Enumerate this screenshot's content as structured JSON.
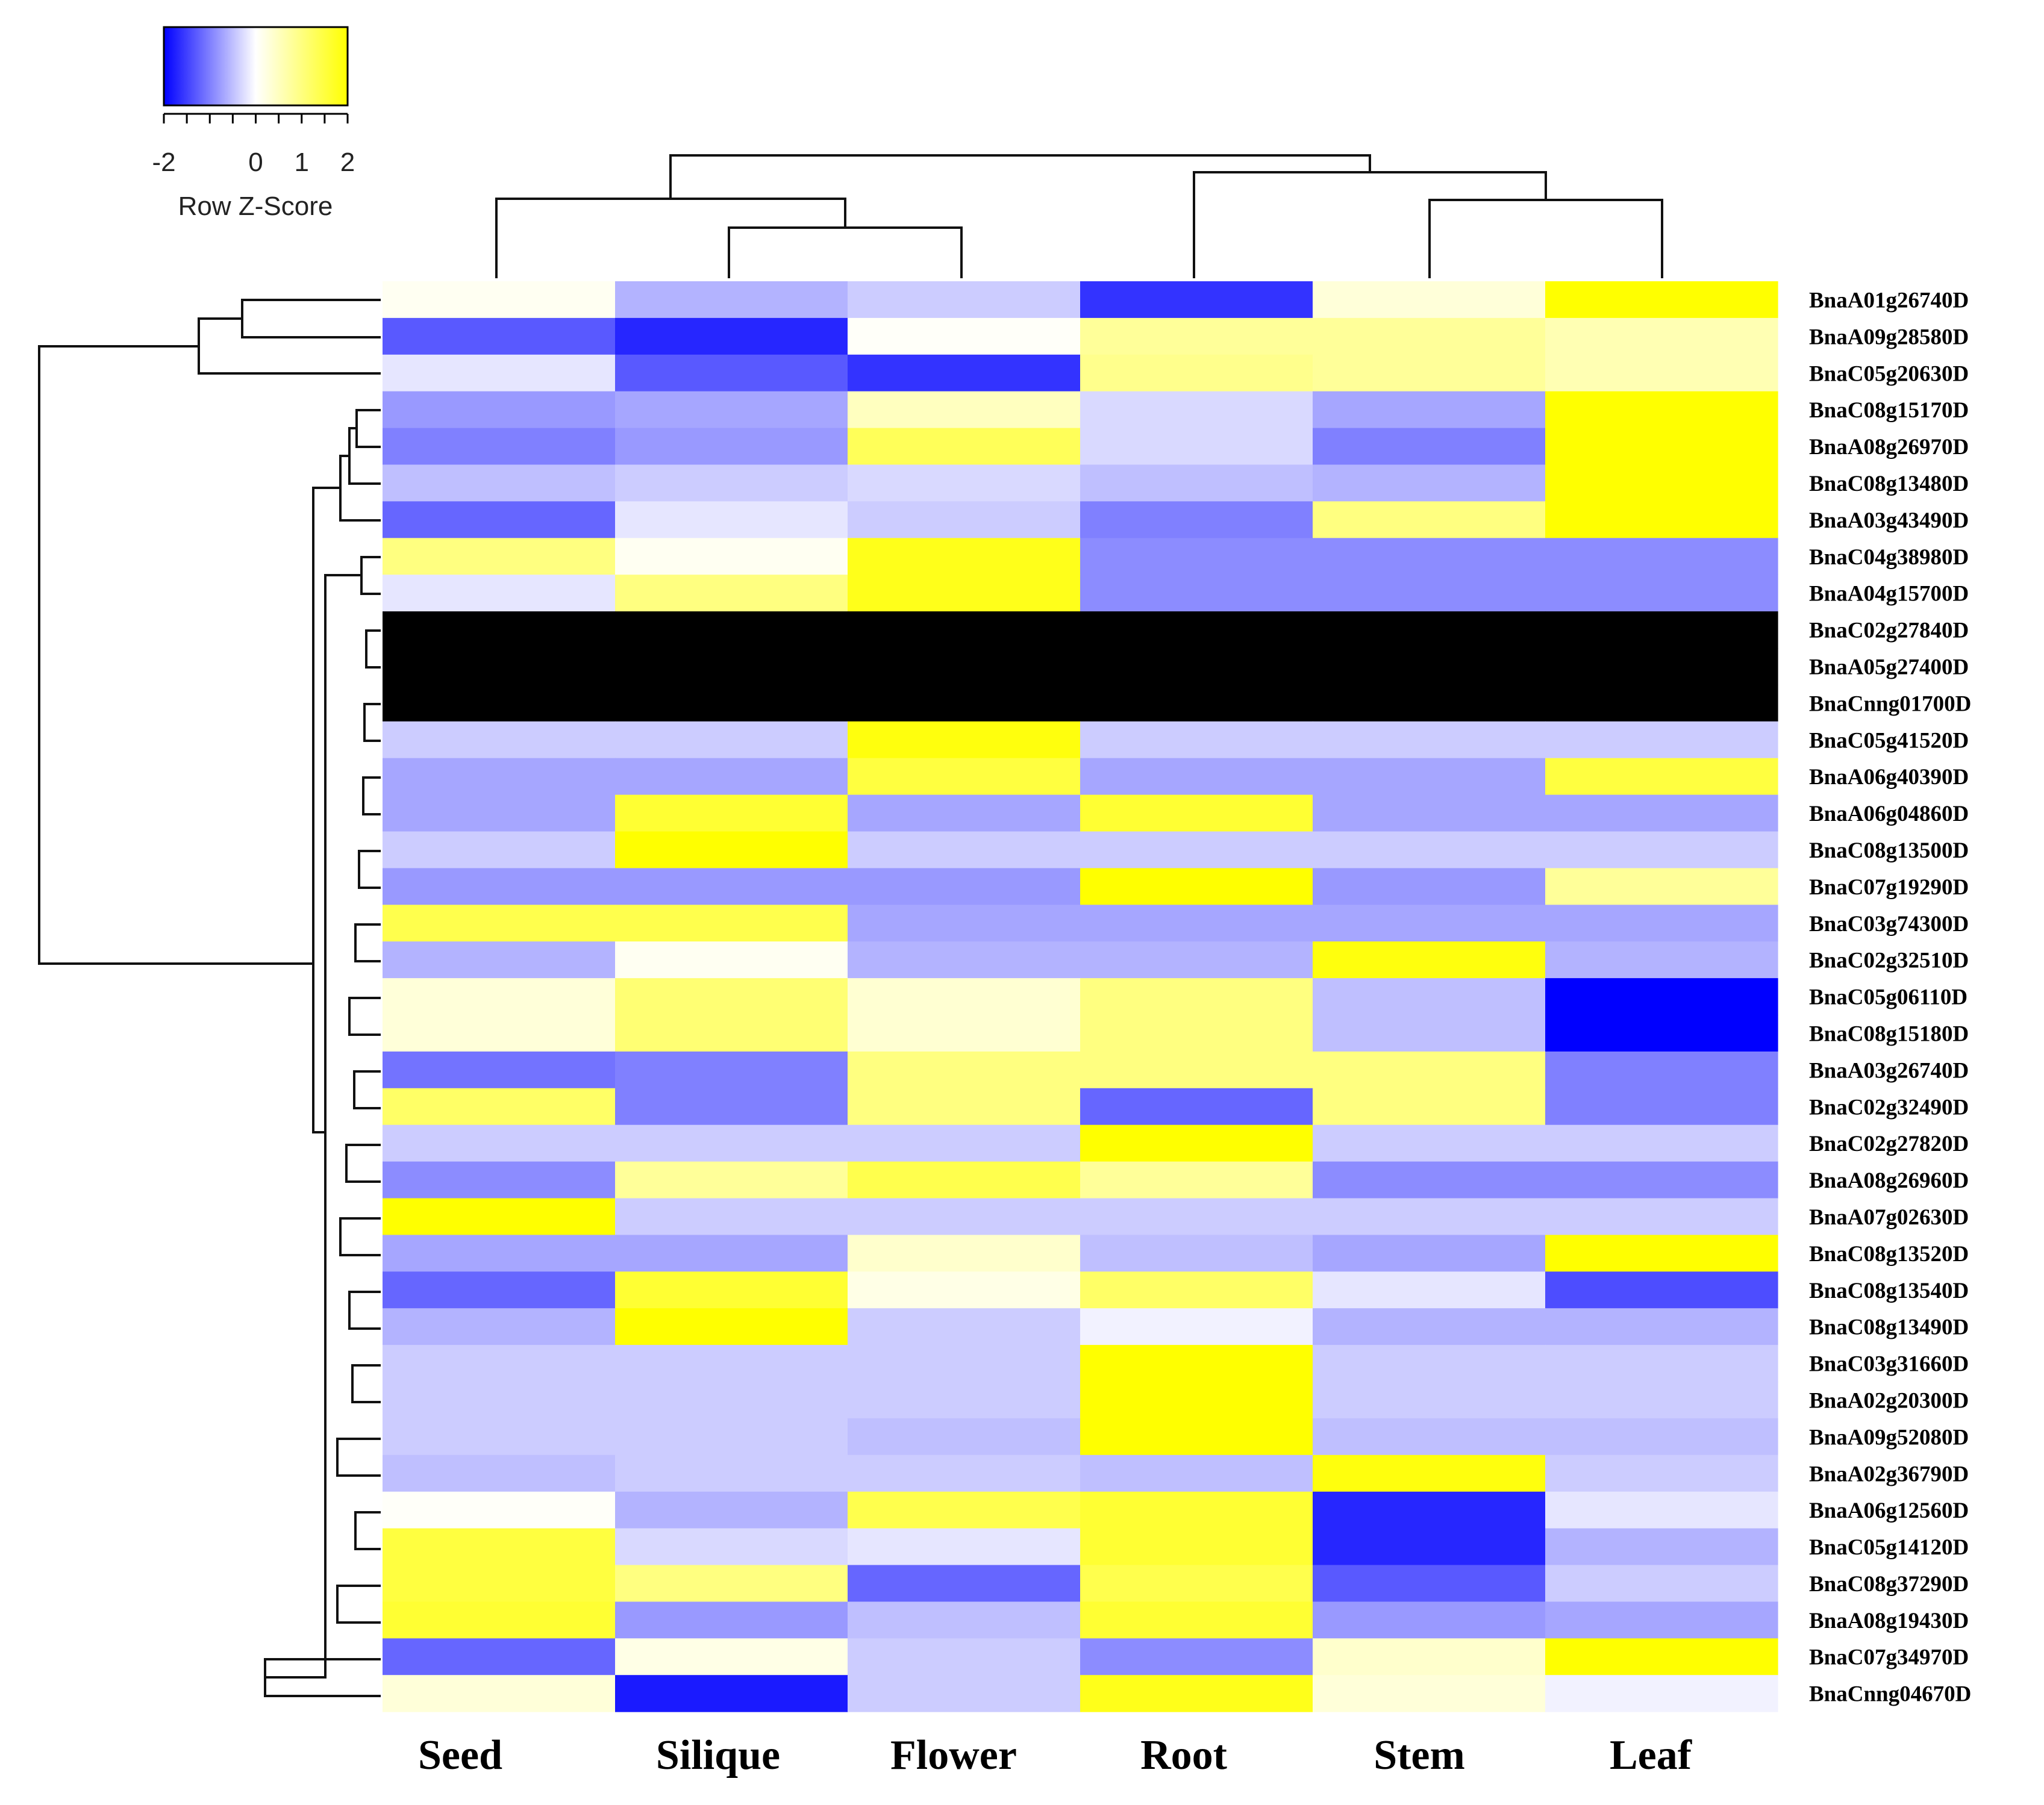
{
  "chart_data": {
    "type": "heatmap",
    "title": "",
    "columns": [
      "Seed",
      "Silique",
      "Flower",
      "Root",
      "Stem",
      "Leaf"
    ],
    "rows": [
      "BnaA01g26740D",
      "BnaA09g28580D",
      "BnaC05g20630D",
      "BnaC08g15170D",
      "BnaA08g26970D",
      "BnaC08g13480D",
      "BnaA03g43490D",
      "BnaC04g38980D",
      "BnaA04g15700D",
      "BnaC02g27840D",
      "BnaA05g27400D",
      "BnaCnng01700D",
      "BnaC05g41520D",
      "BnaA06g40390D",
      "BnaA06g04860D",
      "BnaC08g13500D",
      "BnaC07g19290D",
      "BnaC03g74300D",
      "BnaC02g32510D",
      "BnaC05g06110D",
      "BnaC08g15180D",
      "BnaA03g26740D",
      "BnaC02g32490D",
      "BnaC02g27820D",
      "BnaA08g26960D",
      "BnaA07g02630D",
      "BnaC08g13520D",
      "BnaC08g13540D",
      "BnaC08g13490D",
      "BnaC03g31660D",
      "BnaA02g20300D",
      "BnaA09g52080D",
      "BnaA02g36790D",
      "BnaA06g12560D",
      "BnaC05g14120D",
      "BnaC08g37290D",
      "BnaA08g19430D",
      "BnaC07g34970D",
      "BnaCnng04670D"
    ],
    "values": [
      [
        0.1,
        -0.6,
        -0.4,
        -1.6,
        0.3,
        2.0
      ],
      [
        -1.3,
        -1.7,
        0.05,
        0.8,
        0.8,
        0.6
      ],
      [
        -0.2,
        -1.3,
        -1.6,
        0.9,
        0.8,
        0.6
      ],
      [
        -0.8,
        -0.7,
        0.5,
        -0.3,
        -0.7,
        2.0
      ],
      [
        -1.0,
        -0.8,
        1.3,
        -0.3,
        -1.0,
        2.0
      ],
      [
        -0.5,
        -0.4,
        -0.3,
        -0.5,
        -0.6,
        2.0
      ],
      [
        -1.2,
        -0.2,
        -0.4,
        -1.0,
        1.0,
        2.0
      ],
      [
        1.0,
        0.1,
        1.8,
        -0.9,
        -0.9,
        -0.9
      ],
      [
        -0.2,
        1.0,
        1.8,
        -0.9,
        -0.9,
        -0.9
      ],
      [
        null,
        null,
        null,
        null,
        null,
        null
      ],
      [
        null,
        null,
        null,
        null,
        null,
        null
      ],
      [
        null,
        null,
        null,
        null,
        null,
        null
      ],
      [
        -0.4,
        -0.4,
        1.9,
        -0.4,
        -0.4,
        -0.4
      ],
      [
        -0.7,
        -0.7,
        1.5,
        -0.7,
        -0.7,
        1.5
      ],
      [
        -0.7,
        1.6,
        -0.7,
        1.6,
        -0.7,
        -0.7
      ],
      [
        -0.4,
        2.0,
        -0.4,
        -0.4,
        -0.4,
        -0.4
      ],
      [
        -0.8,
        -0.8,
        -0.8,
        2.0,
        -0.8,
        0.8
      ],
      [
        1.4,
        1.4,
        -0.7,
        -0.7,
        -0.7,
        -0.7
      ],
      [
        -0.6,
        0.1,
        -0.6,
        -0.6,
        1.9,
        -0.6
      ],
      [
        0.3,
        1.1,
        0.35,
        1.0,
        -0.5,
        -2.0
      ],
      [
        0.3,
        1.1,
        0.35,
        1.0,
        -0.5,
        -2.0
      ],
      [
        -1.1,
        -1.0,
        1.0,
        1.0,
        1.0,
        -1.0
      ],
      [
        1.2,
        -1.0,
        1.0,
        -1.2,
        1.0,
        -1.0
      ],
      [
        -0.4,
        -0.4,
        -0.4,
        2.0,
        -0.4,
        -0.4
      ],
      [
        -0.9,
        0.8,
        1.4,
        0.8,
        -0.9,
        -0.9
      ],
      [
        2.0,
        -0.4,
        -0.4,
        -0.4,
        -0.4,
        -0.4
      ],
      [
        -0.7,
        -0.7,
        0.4,
        -0.5,
        -0.7,
        2.0
      ],
      [
        -1.2,
        1.6,
        0.2,
        1.2,
        -0.2,
        -1.4
      ],
      [
        -0.6,
        2.0,
        -0.4,
        -0.1,
        -0.6,
        -0.6
      ],
      [
        -0.4,
        -0.4,
        -0.4,
        2.0,
        -0.4,
        -0.4
      ],
      [
        -0.4,
        -0.4,
        -0.4,
        2.0,
        -0.4,
        -0.4
      ],
      [
        -0.4,
        -0.4,
        -0.5,
        2.0,
        -0.5,
        -0.5
      ],
      [
        -0.5,
        -0.4,
        -0.4,
        -0.5,
        1.9,
        -0.4
      ],
      [
        0.05,
        -0.6,
        1.4,
        1.6,
        -1.7,
        -0.2
      ],
      [
        1.5,
        -0.3,
        -0.2,
        1.6,
        -1.7,
        -0.6
      ],
      [
        1.5,
        1.0,
        -1.2,
        1.4,
        -1.3,
        -0.4
      ],
      [
        1.6,
        -0.8,
        -0.5,
        1.6,
        -0.8,
        -0.7
      ],
      [
        -1.2,
        0.2,
        -0.4,
        -0.9,
        0.4,
        2.0
      ],
      [
        0.3,
        -1.8,
        -0.4,
        1.8,
        0.3,
        -0.1
      ]
    ],
    "color_key": {
      "title": "Row Z-Score",
      "range": [
        -2,
        2
      ],
      "ticks": [
        -2,
        -1.5,
        -1,
        -0.5,
        0,
        0.5,
        1,
        1.5,
        2
      ],
      "tick_labels": [
        "-2",
        "0",
        "1",
        "2"
      ],
      "tick_label_values": [
        -2,
        0,
        1,
        2
      ],
      "low_color": "#0000ff",
      "mid_color": "#ffffff",
      "high_color": "#ffff00",
      "na_color": "#000000"
    },
    "column_dendrogram_order": [
      "Seed",
      "Silique",
      "Flower",
      "Root",
      "Stem",
      "Leaf"
    ],
    "legend_position": "top-left"
  }
}
